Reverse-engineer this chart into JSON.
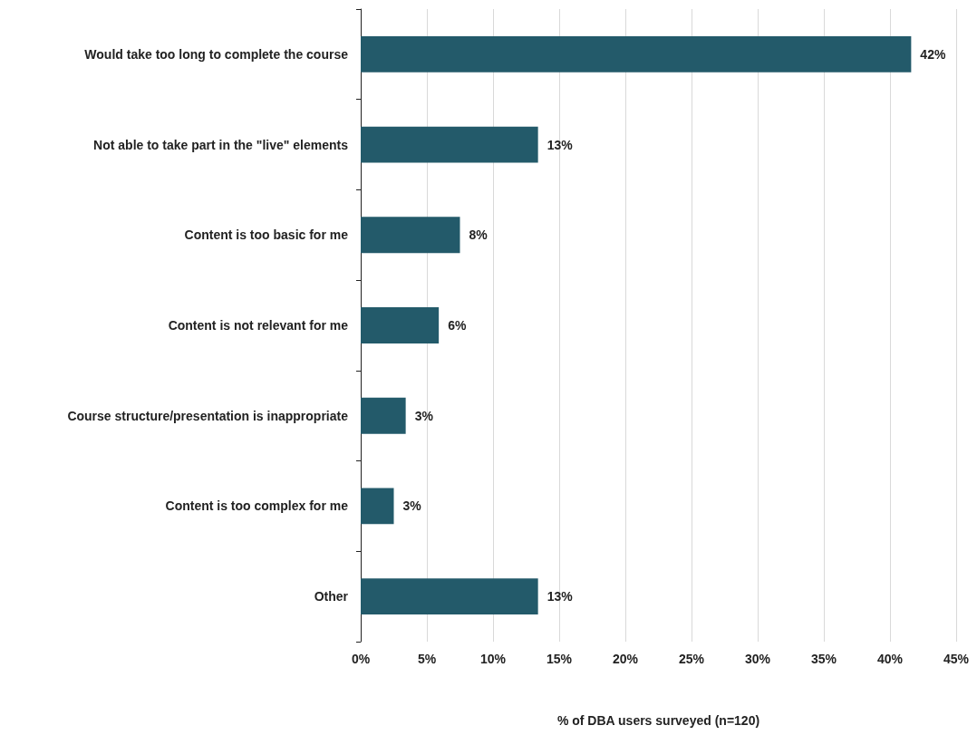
{
  "chart_data": {
    "type": "bar",
    "orientation": "horizontal",
    "xlabel": "% of DBA users surveyed (n=120)",
    "categories": [
      "Would take too long to complete the course",
      "Not able to take part in the \"live\" elements",
      "Content is too basic for me",
      "Content is not relevant for me",
      "Course structure/presentation is inappropriate",
      "Content is too complex for me",
      "Other"
    ],
    "values": [
      41.6,
      13.4,
      7.5,
      5.9,
      3.4,
      2.5,
      13.4
    ],
    "value_labels": [
      "42%",
      "13%",
      "8%",
      "6%",
      "3%",
      "3%",
      "13%"
    ],
    "color": "#235a6a",
    "xlim": [
      0,
      45
    ],
    "xticks": [
      {
        "value": 0,
        "label": "0%"
      },
      {
        "value": 5,
        "label": "5%"
      },
      {
        "value": 10,
        "label": "10%"
      },
      {
        "value": 15,
        "label": "15%"
      },
      {
        "value": 20,
        "label": "20%"
      },
      {
        "value": 25,
        "label": "25%"
      },
      {
        "value": 30,
        "label": "30%"
      },
      {
        "value": 35,
        "label": "35%"
      },
      {
        "value": 40,
        "label": "40%"
      },
      {
        "value": 45,
        "label": "45%"
      }
    ],
    "grid": "x"
  }
}
